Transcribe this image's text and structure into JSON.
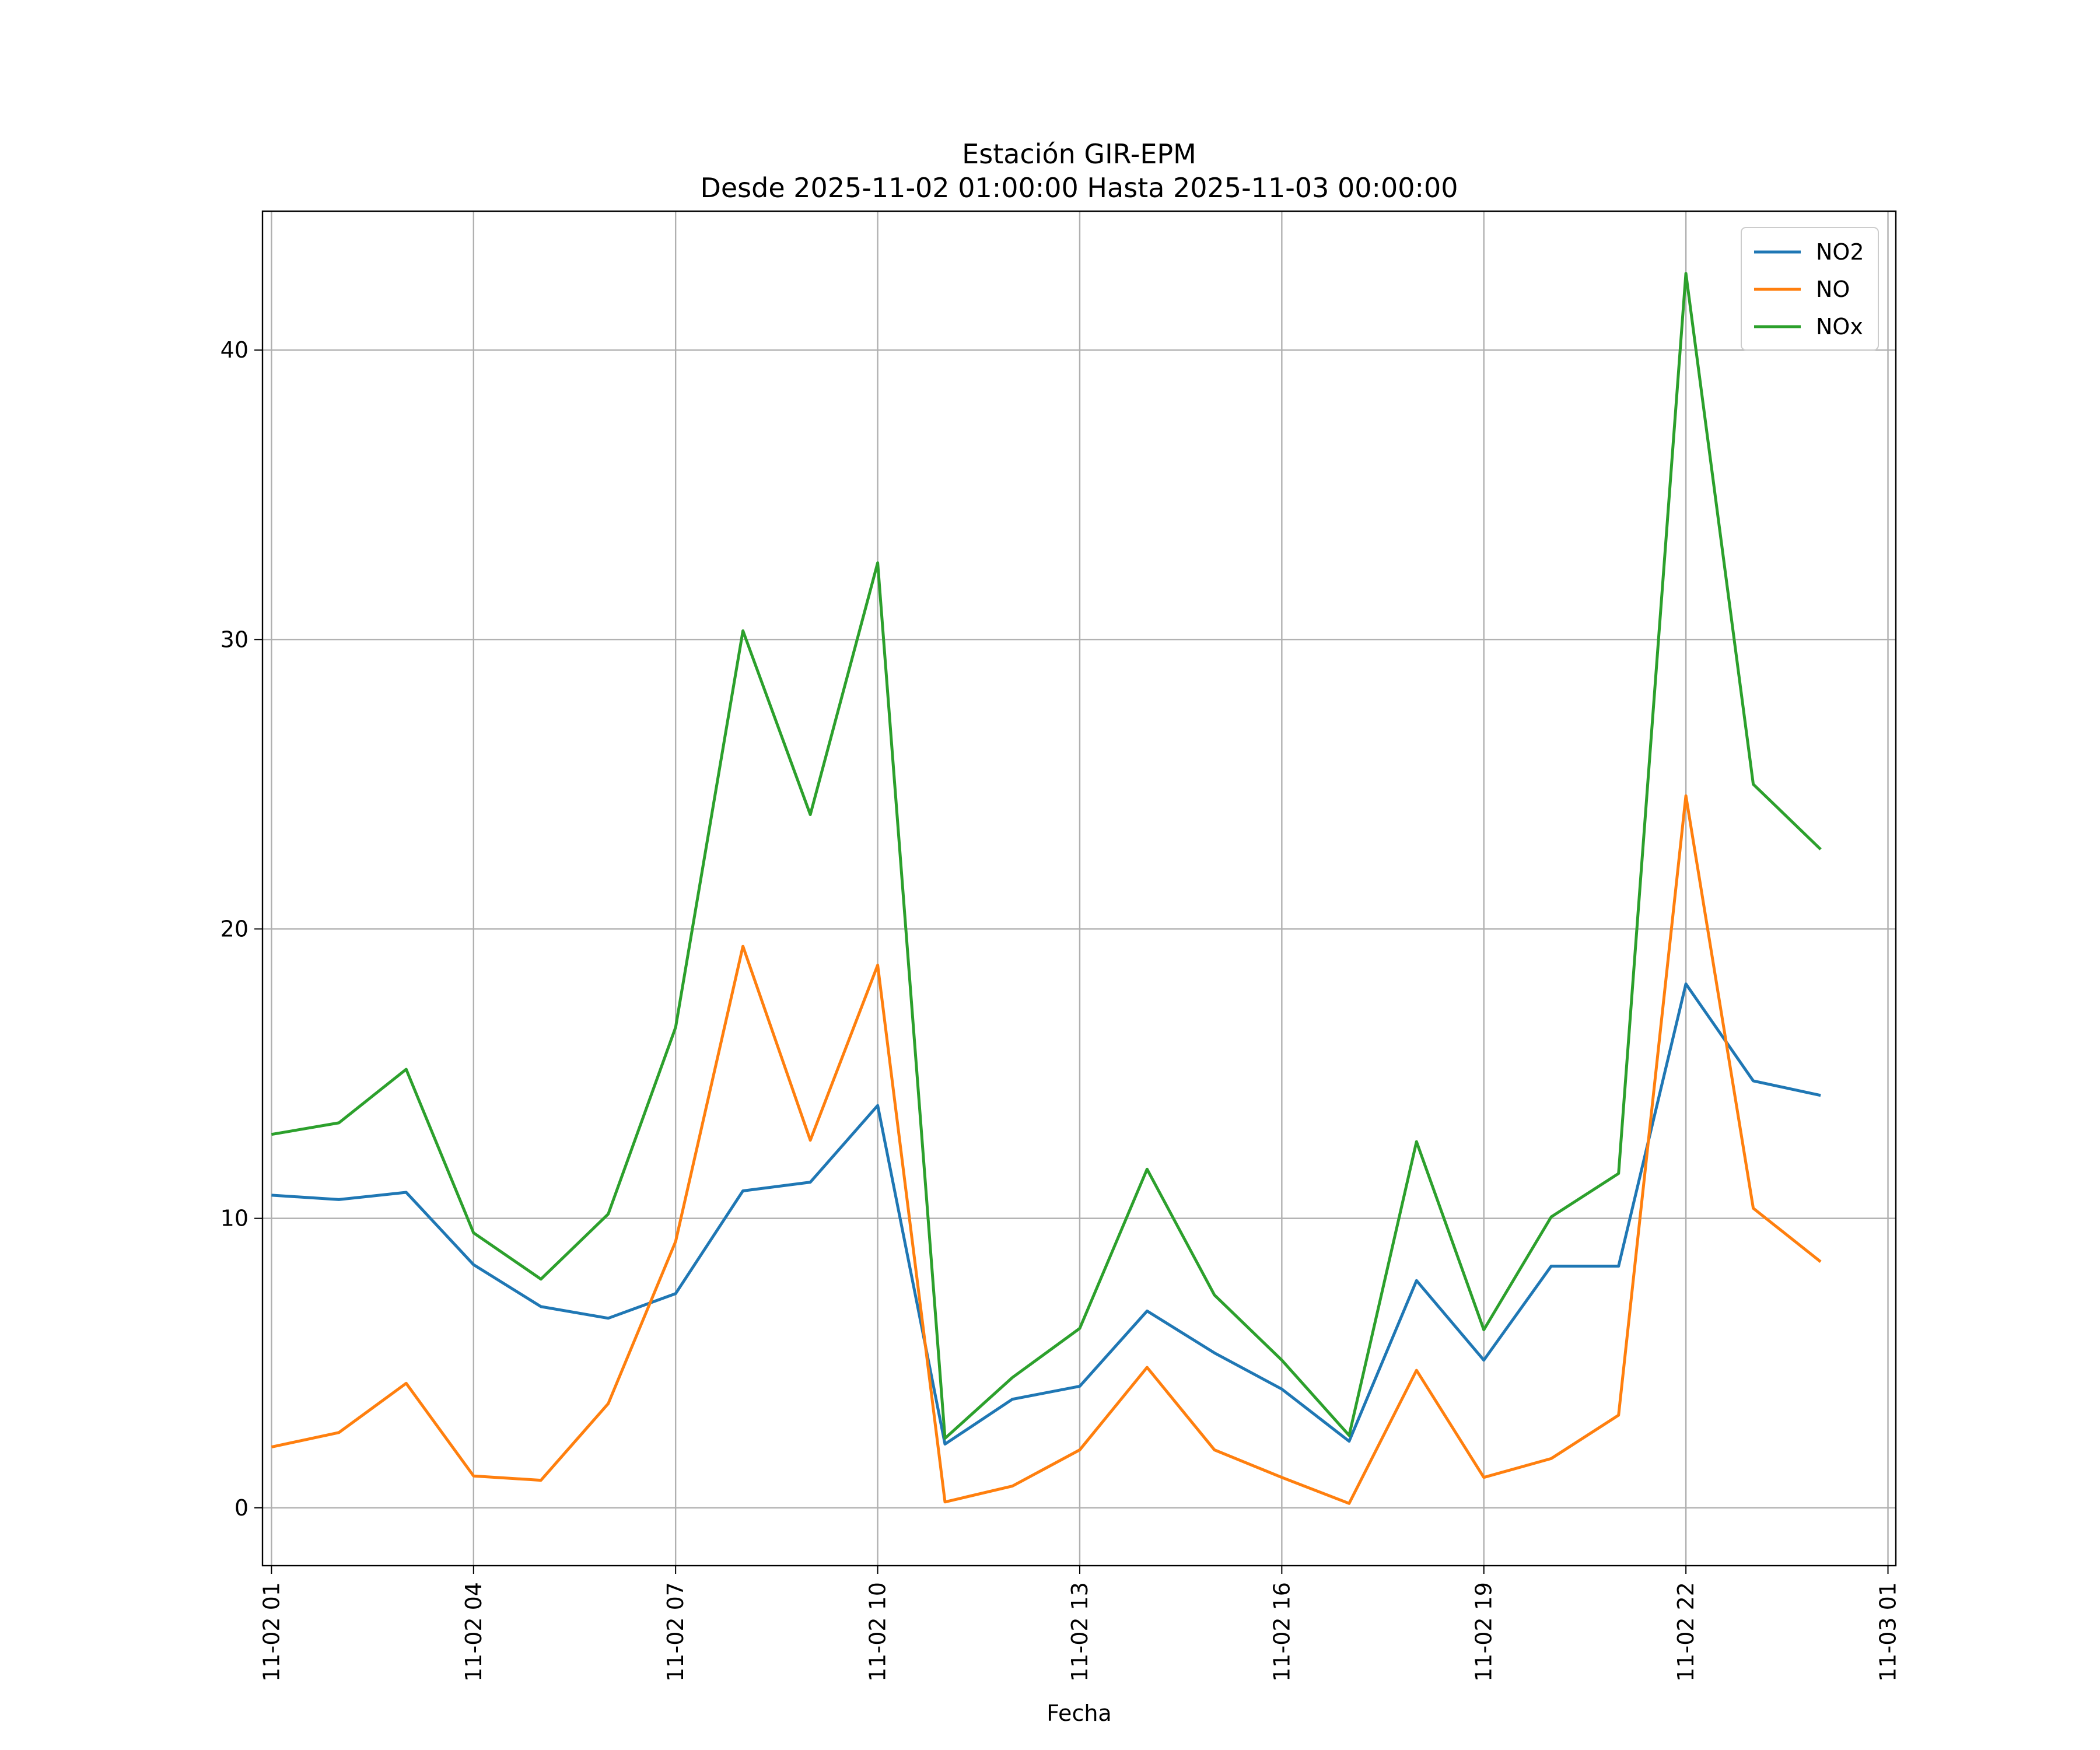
{
  "chart_data": {
    "type": "line",
    "title": "Estación GIR-EPM",
    "subtitle": "Desde 2025-11-02 01:00:00 Hasta 2025-11-03 00:00:00",
    "xlabel": "Fecha",
    "ylabel": "",
    "x": [
      "2025-11-02 01:00",
      "2025-11-02 02:00",
      "2025-11-02 03:00",
      "2025-11-02 04:00",
      "2025-11-02 05:00",
      "2025-11-02 06:00",
      "2025-11-02 07:00",
      "2025-11-02 08:00",
      "2025-11-02 09:00",
      "2025-11-02 10:00",
      "2025-11-02 11:00",
      "2025-11-02 12:00",
      "2025-11-02 13:00",
      "2025-11-02 14:00",
      "2025-11-02 15:00",
      "2025-11-02 16:00",
      "2025-11-02 17:00",
      "2025-11-02 18:00",
      "2025-11-02 19:00",
      "2025-11-02 20:00",
      "2025-11-02 21:00",
      "2025-11-02 22:00",
      "2025-11-02 23:00",
      "2025-11-03 00:00"
    ],
    "x_ticks": [
      "11-02 01",
      "11-02 04",
      "11-02 07",
      "11-02 10",
      "11-02 13",
      "11-02 16",
      "11-02 19",
      "11-02 22",
      "11-03 01"
    ],
    "y_ticks": [
      0,
      10,
      20,
      30,
      40
    ],
    "ylim": [
      -2,
      44.8
    ],
    "xlim": [
      "2025-11-02 00:52",
      "2025-11-03 01:07"
    ],
    "grid": true,
    "legend_position": "top-right",
    "series": [
      {
        "name": "NO2",
        "color": "#1f77b4",
        "values": [
          10.8,
          10.65,
          10.9,
          8.4,
          6.95,
          6.55,
          7.4,
          10.95,
          11.25,
          13.9,
          2.2,
          3.75,
          4.2,
          6.8,
          5.35,
          4.1,
          2.3,
          7.85,
          5.1,
          8.35,
          8.35,
          18.1,
          14.75,
          14.25
        ]
      },
      {
        "name": "NO",
        "color": "#ff7f0e",
        "values": [
          2.1,
          2.6,
          4.3,
          1.1,
          0.95,
          3.6,
          9.2,
          19.4,
          12.7,
          18.75,
          0.2,
          0.75,
          2.0,
          4.85,
          2.0,
          1.05,
          0.15,
          4.75,
          1.05,
          1.7,
          3.2,
          24.6,
          10.35,
          8.5
        ]
      },
      {
        "name": "NOx",
        "color": "#2ca02c",
        "values": [
          12.9,
          13.3,
          15.15,
          9.5,
          7.9,
          10.15,
          16.6,
          30.3,
          23.95,
          32.65,
          2.4,
          4.5,
          6.2,
          11.7,
          7.35,
          5.1,
          2.5,
          12.65,
          6.15,
          10.05,
          11.55,
          42.65,
          25.0,
          22.75
        ]
      }
    ]
  }
}
